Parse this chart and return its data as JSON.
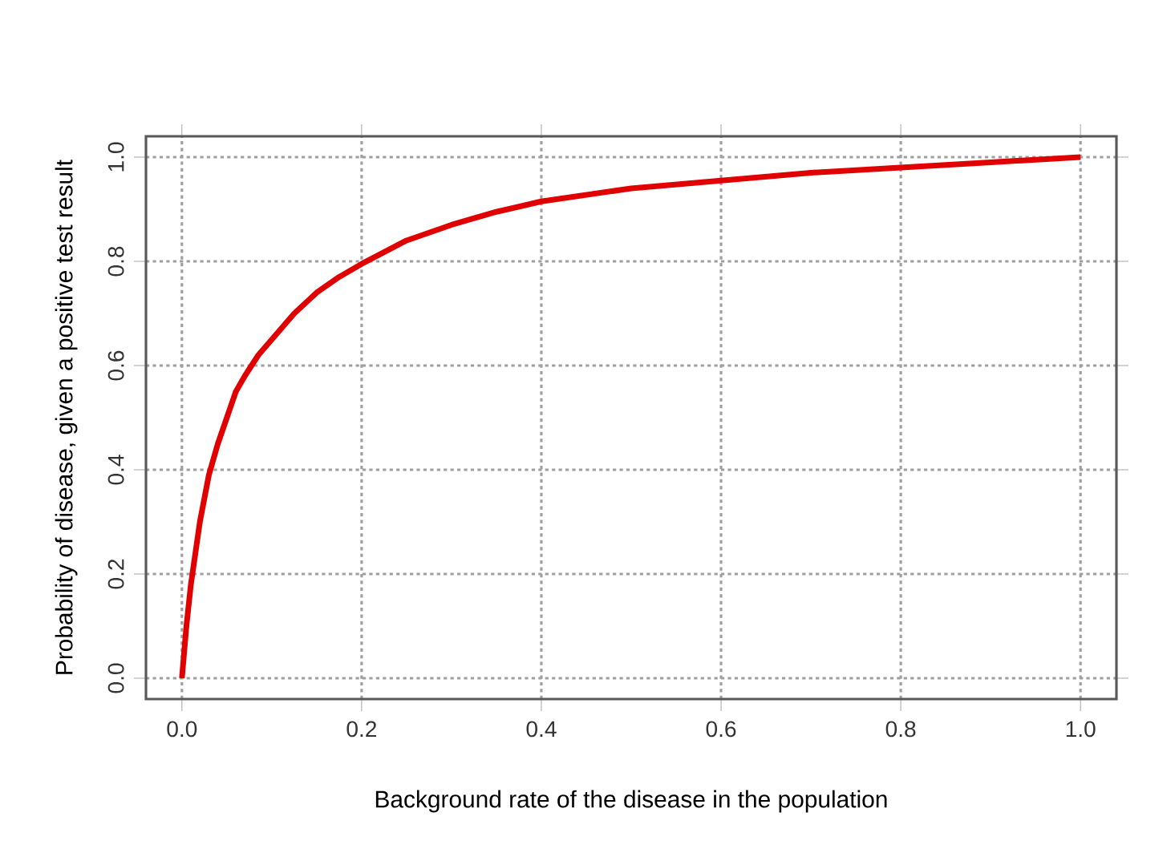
{
  "chart_data": {
    "type": "line",
    "xlabel": "Background rate of the disease in the population",
    "ylabel": "Probability of disease, given a positive test result",
    "x": [
      0,
      0.005,
      0.01,
      0.02,
      0.03,
      0.04,
      0.05,
      0.06,
      0.07,
      0.085,
      0.1,
      0.125,
      0.15,
      0.175,
      0.2,
      0.25,
      0.3,
      0.35,
      0.4,
      0.5,
      0.6,
      0.7,
      0.8,
      0.9,
      1.0
    ],
    "values": [
      0,
      0.1,
      0.18,
      0.3,
      0.39,
      0.45,
      0.5,
      0.55,
      0.58,
      0.62,
      0.65,
      0.7,
      0.74,
      0.77,
      0.795,
      0.84,
      0.87,
      0.895,
      0.915,
      0.94,
      0.955,
      0.97,
      0.98,
      0.99,
      1.0
    ],
    "color": "#e00000",
    "xlim": [
      -0.04,
      1.04
    ],
    "ylim": [
      -0.04,
      1.04
    ],
    "xticks": [
      {
        "value": 0,
        "label": "0.0"
      },
      {
        "value": 0.2,
        "label": "0.2"
      },
      {
        "value": 0.4,
        "label": "0.4"
      },
      {
        "value": 0.6,
        "label": "0.6"
      },
      {
        "value": 0.8,
        "label": "0.8"
      },
      {
        "value": 1,
        "label": "1.0"
      }
    ],
    "yticks": [
      {
        "value": 0,
        "label": "0.0"
      },
      {
        "value": 0.2,
        "label": "0.2"
      },
      {
        "value": 0.4,
        "label": "0.4"
      },
      {
        "value": 0.6,
        "label": "0.6"
      },
      {
        "value": 0.8,
        "label": "0.8"
      },
      {
        "value": 1,
        "label": "1.0"
      }
    ],
    "grid": true
  }
}
